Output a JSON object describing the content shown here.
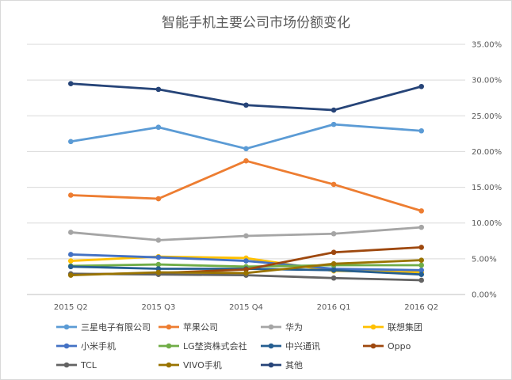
{
  "chart_data": {
    "type": "line",
    "title": "智能手机主要公司市场份额变化",
    "xlabel": "",
    "ylabel": "",
    "categories": [
      "2015 Q2",
      "2015 Q3",
      "2015 Q4",
      "2016 Q1",
      "2016 Q2"
    ],
    "ylim": [
      0,
      35
    ],
    "yticks": [
      "0.00%",
      "5.00%",
      "10.00%",
      "15.00%",
      "20.00%",
      "25.00%",
      "30.00%",
      "35.00%"
    ],
    "y_axis_side": "right",
    "grid": true,
    "legend_position": "bottom",
    "series": [
      {
        "name": "三星电子有限公司",
        "color": "#5b9bd5",
        "values": [
          21.4,
          23.4,
          20.4,
          23.8,
          22.9
        ]
      },
      {
        "name": "苹果公司",
        "color": "#ed7d31",
        "values": [
          13.9,
          13.4,
          18.7,
          15.4,
          11.7
        ]
      },
      {
        "name": "华为",
        "color": "#a5a5a5",
        "values": [
          8.7,
          7.6,
          8.2,
          8.5,
          9.4
        ]
      },
      {
        "name": "联想集团",
        "color": "#ffc000",
        "values": [
          4.7,
          5.3,
          5.1,
          3.3,
          3.1
        ]
      },
      {
        "name": "小米手机",
        "color": "#4472c4",
        "values": [
          5.6,
          5.2,
          4.7,
          3.6,
          3.4
        ]
      },
      {
        "name": "LG埜资株式会社",
        "color": "#70ad47",
        "values": [
          4.0,
          4.2,
          3.9,
          4.1,
          4.1
        ]
      },
      {
        "name": "中兴通讯",
        "color": "#255e91",
        "values": [
          3.9,
          3.6,
          3.6,
          3.4,
          2.8
        ]
      },
      {
        "name": "Oppo",
        "color": "#9e480e",
        "values": [
          2.8,
          3.0,
          3.5,
          5.9,
          6.6
        ]
      },
      {
        "name": "TCL",
        "color": "#636363",
        "values": [
          2.9,
          2.8,
          2.7,
          2.3,
          2.0
        ]
      },
      {
        "name": "VIVO手机",
        "color": "#997300",
        "values": [
          2.7,
          3.1,
          3.0,
          4.3,
          4.8
        ]
      },
      {
        "name": "其他",
        "color": "#264478",
        "values": [
          29.5,
          28.7,
          26.5,
          25.8,
          29.1
        ]
      }
    ]
  }
}
